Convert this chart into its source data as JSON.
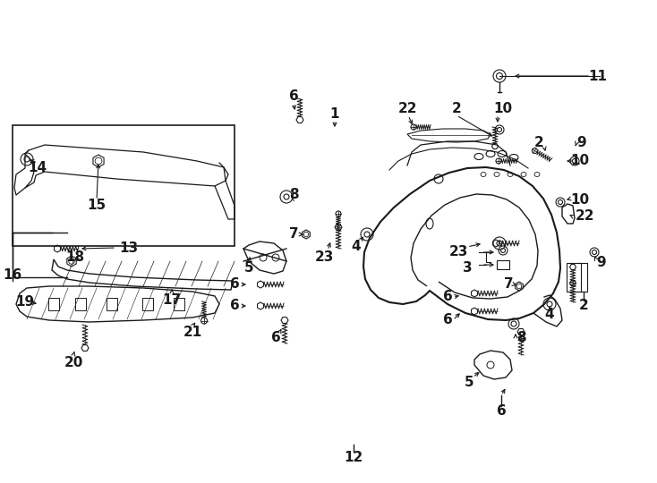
{
  "bg_color": "#ffffff",
  "line_color": "#1a1a1a",
  "fig_width": 7.34,
  "fig_height": 5.4,
  "dpi": 100,
  "label_fontsize": 11
}
